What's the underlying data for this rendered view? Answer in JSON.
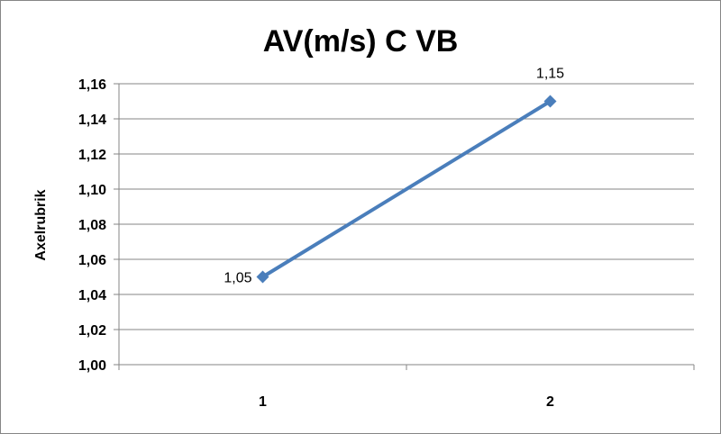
{
  "chart_data": {
    "type": "line",
    "title": "AV(m/s) C VB",
    "xlabel": "",
    "ylabel": "Axelrubrik",
    "categories": [
      "1",
      "2"
    ],
    "series": [
      {
        "values": [
          1.05,
          1.15
        ]
      }
    ],
    "data_labels": [
      "1,05",
      "1,15"
    ],
    "ylim": [
      1.0,
      1.16
    ],
    "yticks": [
      1.0,
      1.02,
      1.04,
      1.06,
      1.08,
      1.1,
      1.12,
      1.14,
      1.16
    ],
    "ytick_labels": [
      "1,00",
      "1,02",
      "1,04",
      "1,06",
      "1,08",
      "1,10",
      "1,12",
      "1,14",
      "1,16"
    ],
    "grid": true,
    "legend": "none",
    "colors": {
      "series": "#4a7ebb",
      "grid": "#868686",
      "axis": "#868686"
    }
  }
}
